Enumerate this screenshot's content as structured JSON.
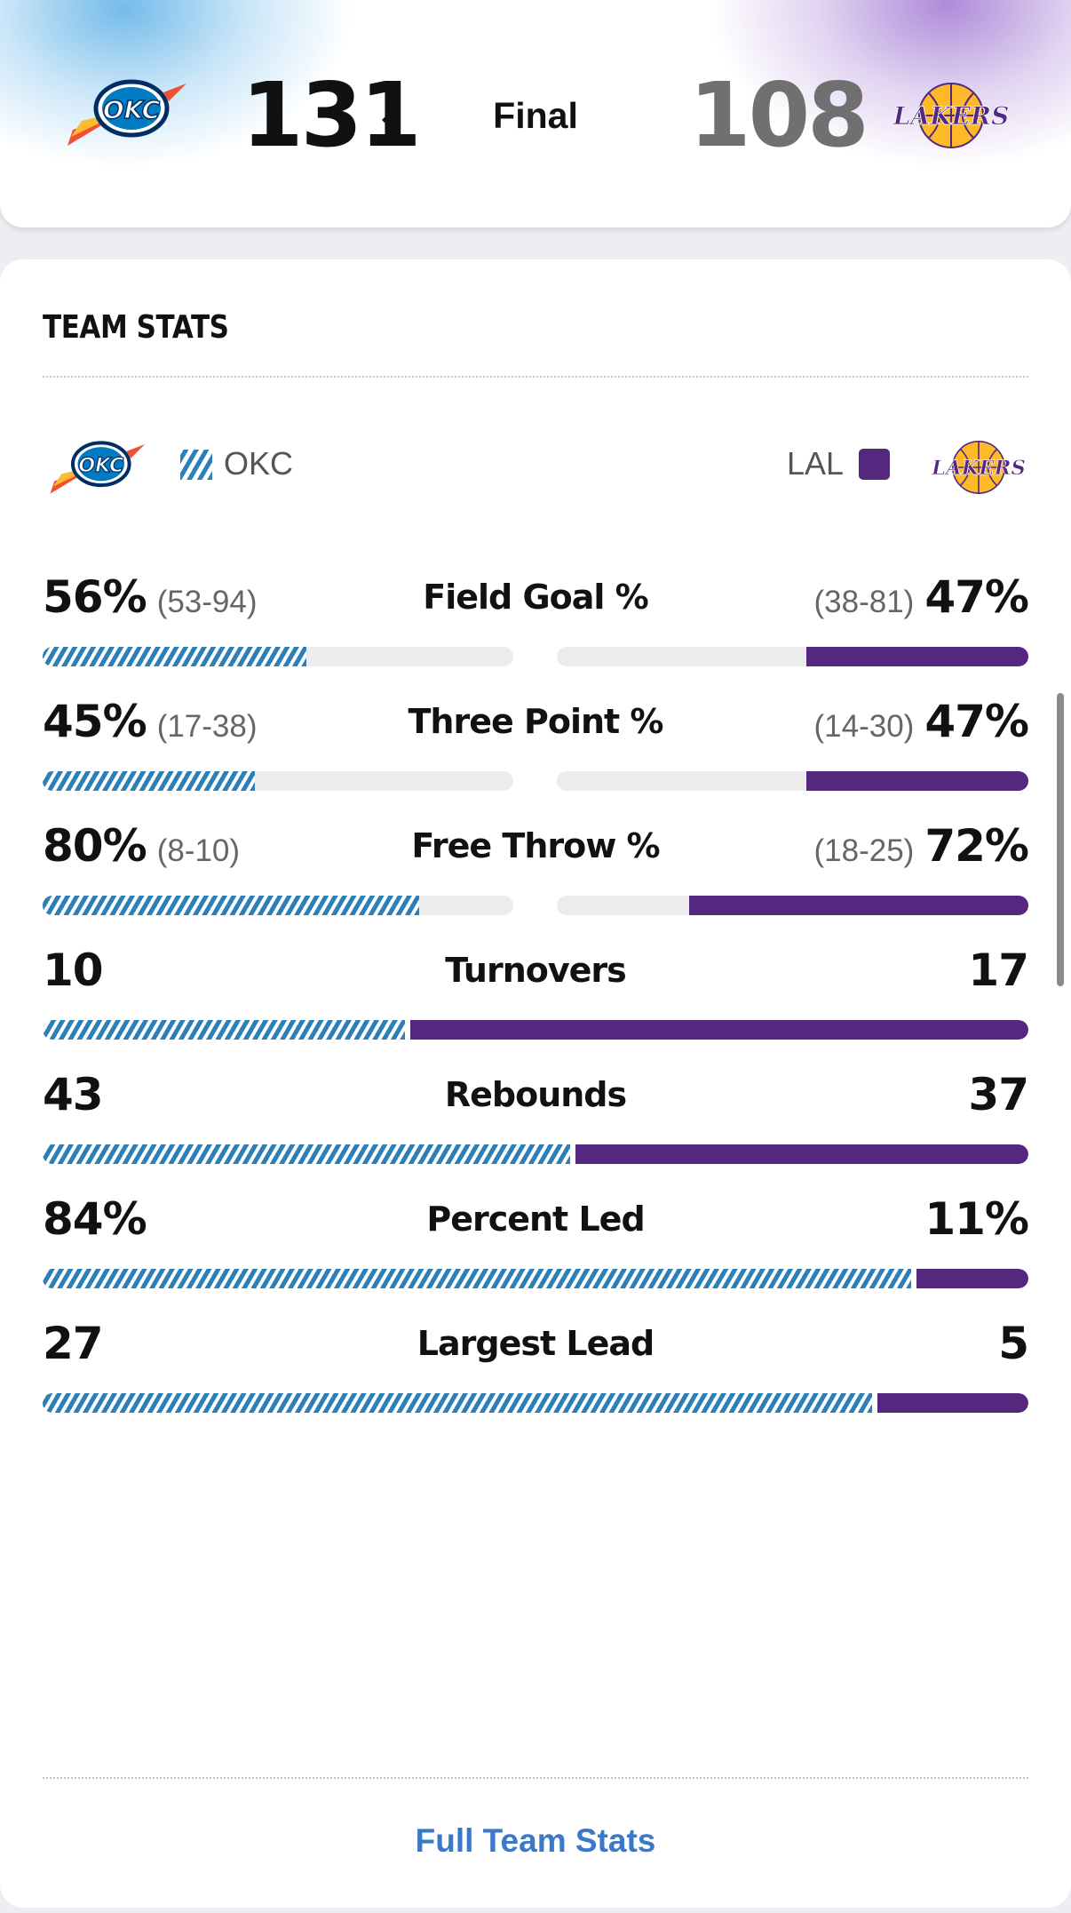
{
  "header": {
    "home_team": {
      "abbr": "OKC",
      "score": "131",
      "color": "#2d7fb7",
      "logo_text": "OKC"
    },
    "away_team": {
      "abbr": "LAL",
      "score": "108",
      "color": "#55287f",
      "logo_text": "LAKERS"
    },
    "status": "Final"
  },
  "team_stats": {
    "title": "TEAM STATS",
    "legend": {
      "home": "OKC",
      "away": "LAL"
    },
    "rows": [
      {
        "label": "Field Goal %",
        "home_value": "56%",
        "home_detail": "(53-94)",
        "away_value": "47%",
        "away_detail": "(38-81)",
        "home_fraction": 0.56,
        "away_fraction": 0.47,
        "mode": "split"
      },
      {
        "label": "Three Point %",
        "home_value": "45%",
        "home_detail": "(17-38)",
        "away_value": "47%",
        "away_detail": "(14-30)",
        "home_fraction": 0.45,
        "away_fraction": 0.47,
        "mode": "split"
      },
      {
        "label": "Free Throw %",
        "home_value": "80%",
        "home_detail": "(8-10)",
        "away_value": "72%",
        "away_detail": "(18-25)",
        "home_fraction": 0.8,
        "away_fraction": 0.72,
        "mode": "split"
      },
      {
        "label": "Turnovers",
        "home_value": "10",
        "home_detail": "",
        "away_value": "17",
        "away_detail": "",
        "home_share": 10,
        "away_share": 17,
        "mode": "compare"
      },
      {
        "label": "Rebounds",
        "home_value": "43",
        "home_detail": "",
        "away_value": "37",
        "away_detail": "",
        "home_share": 43,
        "away_share": 37,
        "mode": "compare"
      },
      {
        "label": "Percent Led",
        "home_value": "84%",
        "home_detail": "",
        "away_value": "11%",
        "away_detail": "",
        "home_share": 84,
        "away_share": 11,
        "mode": "compare"
      },
      {
        "label": "Largest Lead",
        "home_value": "27",
        "home_detail": "",
        "away_value": "5",
        "away_detail": "",
        "home_share": 27,
        "away_share": 5,
        "mode": "compare"
      }
    ],
    "link": "Full Team Stats"
  }
}
